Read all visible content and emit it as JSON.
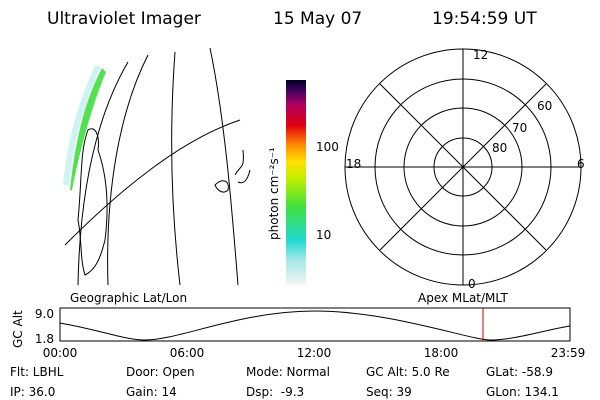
{
  "header": {
    "instrument": "Ultraviolet Imager",
    "date": "15 May 07",
    "time": "19:54:59 UT"
  },
  "geographic_panel": {
    "label": "Geographic Lat/Lon"
  },
  "colorbar": {
    "label": "photon cm⁻²s⁻¹",
    "ticks": [
      "100",
      "10"
    ]
  },
  "polar_panel": {
    "label": "Apex MLat/MLT",
    "mlt_labels": [
      "12",
      "18",
      "6",
      "0"
    ],
    "lat_labels": [
      "60",
      "70",
      "80"
    ]
  },
  "altitude_plot": {
    "y_label": "GC Alt",
    "yticks": [
      "9.0",
      "1.8"
    ],
    "xticks": [
      "00:00",
      "06:00",
      "12:00",
      "18:00",
      "23:59"
    ]
  },
  "info": {
    "rows": [
      [
        "Flt: LBHL",
        "Door: Open",
        "Mode: Normal",
        "GC Alt: 5.0 Re",
        "GLat: -58.9"
      ],
      [
        "IP: 36.0",
        "Gain: 14",
        "Dsp:  -9.3",
        "Seq: 39",
        "GLon: 134.1"
      ]
    ]
  }
}
